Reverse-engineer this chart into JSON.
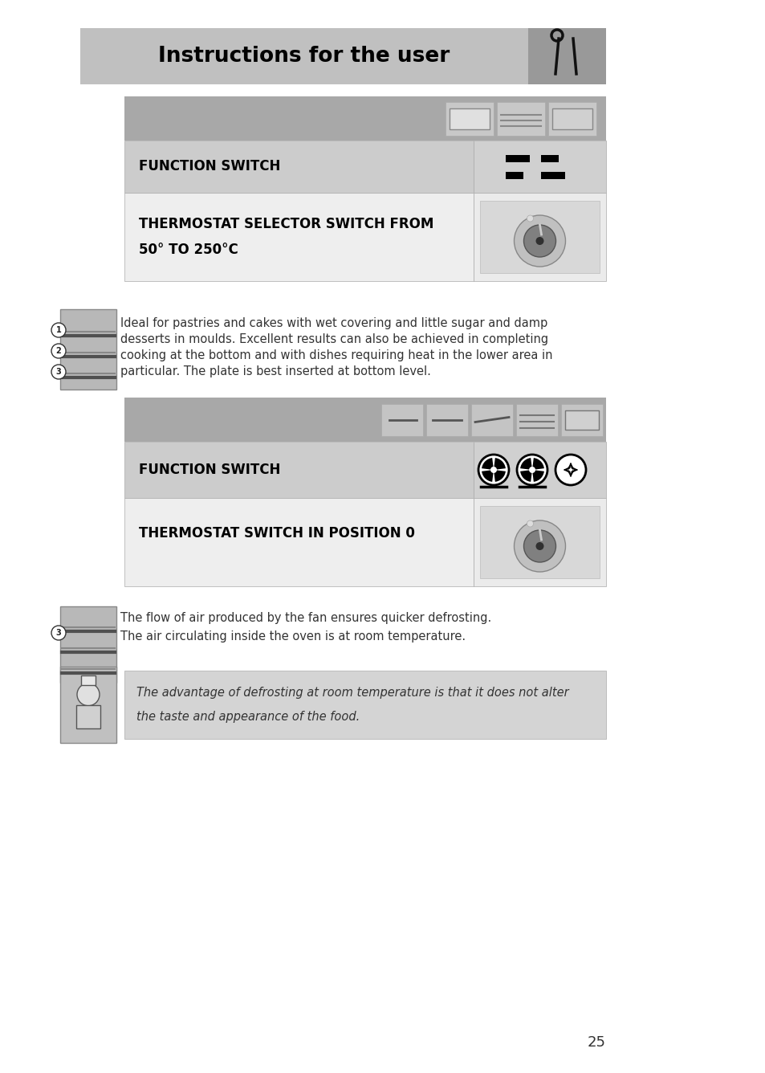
{
  "title": "Instructions for the user",
  "page_bg": "#ffffff",
  "title_bg": "#c0c0c0",
  "title_icon_bg": "#999999",
  "section_hdr_bg": "#a8a8a8",
  "row1_left_bg": "#cccccc",
  "row1_right_bg": "#d0d0d0",
  "row2_left_bg": "#eeeeee",
  "row2_right_bg": "#ebebeb",
  "note_bg": "#d4d4d4",
  "section1_hdr_icons": 3,
  "section2_hdr_icons": 5,
  "s1_row1_label": "FUNCTION SWITCH",
  "s1_row2_label_l1": "THERMOSTAT SELECTOR SWITCH FROM",
  "s1_row2_label_l2": "50° TO 250°C",
  "s1_text_l1": "Ideal for pastries and cakes with wet covering and little sugar and damp",
  "s1_text_l2": "desserts in moulds. Excellent results can also be achieved in completing",
  "s1_text_l3": "cooking at the bottom and with dishes requiring heat in the lower area in",
  "s1_text_l4": "particular. The plate is best inserted at bottom level.",
  "s2_row1_label": "FUNCTION SWITCH",
  "s2_row2_label": "THERMOSTAT SWITCH IN POSITION 0",
  "s2_text_l1": "The flow of air produced by the fan ensures quicker defrosting.",
  "s2_text_l2": "The air circulating inside the oven is at room temperature.",
  "note_l1": "The advantage of defrosting at room temperature is that it does not alter",
  "note_l2": "the taste and appearance of the food.",
  "page_number": "25",
  "black": "#000000",
  "dark_gray": "#333333",
  "mid_gray": "#666666",
  "light_gray": "#aaaaaa",
  "white": "#ffffff"
}
